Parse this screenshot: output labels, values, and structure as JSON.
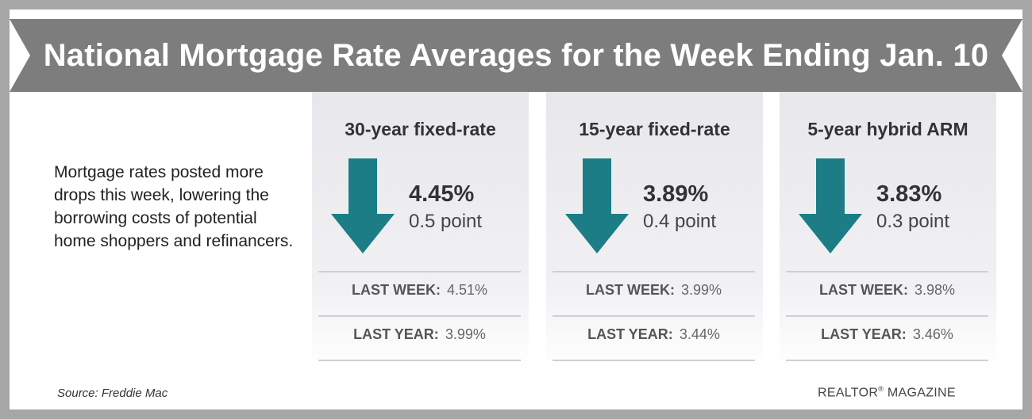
{
  "title": "National Mortgage Rate Averages for the Week Ending Jan. 10",
  "intro": "Mortgage rates posted more drops this week, lowering the borrowing costs of potential home shoppers and refinancers.",
  "colors": {
    "arrow": "#1c7d86",
    "banner": "#7d7d7d",
    "border": "#a6a6a6"
  },
  "panels": [
    {
      "title": "30-year fixed-rate",
      "icon": "down-arrow-icon",
      "rate": "4.45%",
      "change": "0.5 point",
      "last_week_label": "LAST WEEK:",
      "last_week_value": "4.51%",
      "last_year_label": "LAST YEAR:",
      "last_year_value": "3.99%"
    },
    {
      "title": "15-year fixed-rate",
      "icon": "down-arrow-icon",
      "rate": "3.89%",
      "change": "0.4 point",
      "last_week_label": "LAST WEEK:",
      "last_week_value": "3.99%",
      "last_year_label": "LAST YEAR:",
      "last_year_value": "3.44%"
    },
    {
      "title": "5-year hybrid ARM",
      "icon": "down-arrow-icon",
      "rate": "3.83%",
      "change": "0.3 point",
      "last_week_label": "LAST WEEK:",
      "last_week_value": "3.98%",
      "last_year_label": "LAST YEAR:",
      "last_year_value": "3.46%"
    }
  ],
  "source": "Source: Freddie Mac",
  "brand": {
    "name": "REALTOR",
    "mark": "®",
    "suffix": " MAGAZINE"
  }
}
